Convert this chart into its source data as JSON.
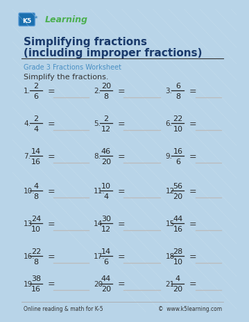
{
  "title_line1": "Simplifying fractions",
  "title_line2": "(including improper fractions)",
  "subtitle": "Grade 3 Fractions Worksheet",
  "instruction": "Simplify the fractions.",
  "bg_color": "#b8d4e8",
  "page_bg": "#ffffff",
  "border_color": "#6aaed6",
  "title_color": "#1a3a6b",
  "subtitle_color": "#4a90c4",
  "text_color": "#333333",
  "fraction_color": "#222222",
  "line_color": "#bbbbbb",
  "footer_left": "Online reading & math for K-5",
  "footer_right": "©  www.k5learning.com",
  "problems": [
    {
      "num": 1,
      "n": "2",
      "d": "6"
    },
    {
      "num": 2,
      "n": "20",
      "d": "8"
    },
    {
      "num": 3,
      "n": "6",
      "d": "8"
    },
    {
      "num": 4,
      "n": "2",
      "d": "4"
    },
    {
      "num": 5,
      "n": "2",
      "d": "12"
    },
    {
      "num": 6,
      "n": "22",
      "d": "10"
    },
    {
      "num": 7,
      "n": "14",
      "d": "16"
    },
    {
      "num": 8,
      "n": "46",
      "d": "20"
    },
    {
      "num": 9,
      "n": "16",
      "d": "6"
    },
    {
      "num": 10,
      "n": "4",
      "d": "8"
    },
    {
      "num": 11,
      "n": "10",
      "d": "4"
    },
    {
      "num": 12,
      "n": "56",
      "d": "20"
    },
    {
      "num": 13,
      "n": "24",
      "d": "10"
    },
    {
      "num": 14,
      "n": "30",
      "d": "12"
    },
    {
      "num": 15,
      "n": "44",
      "d": "16"
    },
    {
      "num": 16,
      "n": "22",
      "d": "8"
    },
    {
      "num": 17,
      "n": "14",
      "d": "6"
    },
    {
      "num": 18,
      "n": "28",
      "d": "10"
    },
    {
      "num": 19,
      "n": "38",
      "d": "16"
    },
    {
      "num": 20,
      "n": "44",
      "d": "20"
    },
    {
      "num": 21,
      "n": "4",
      "d": "20"
    }
  ]
}
